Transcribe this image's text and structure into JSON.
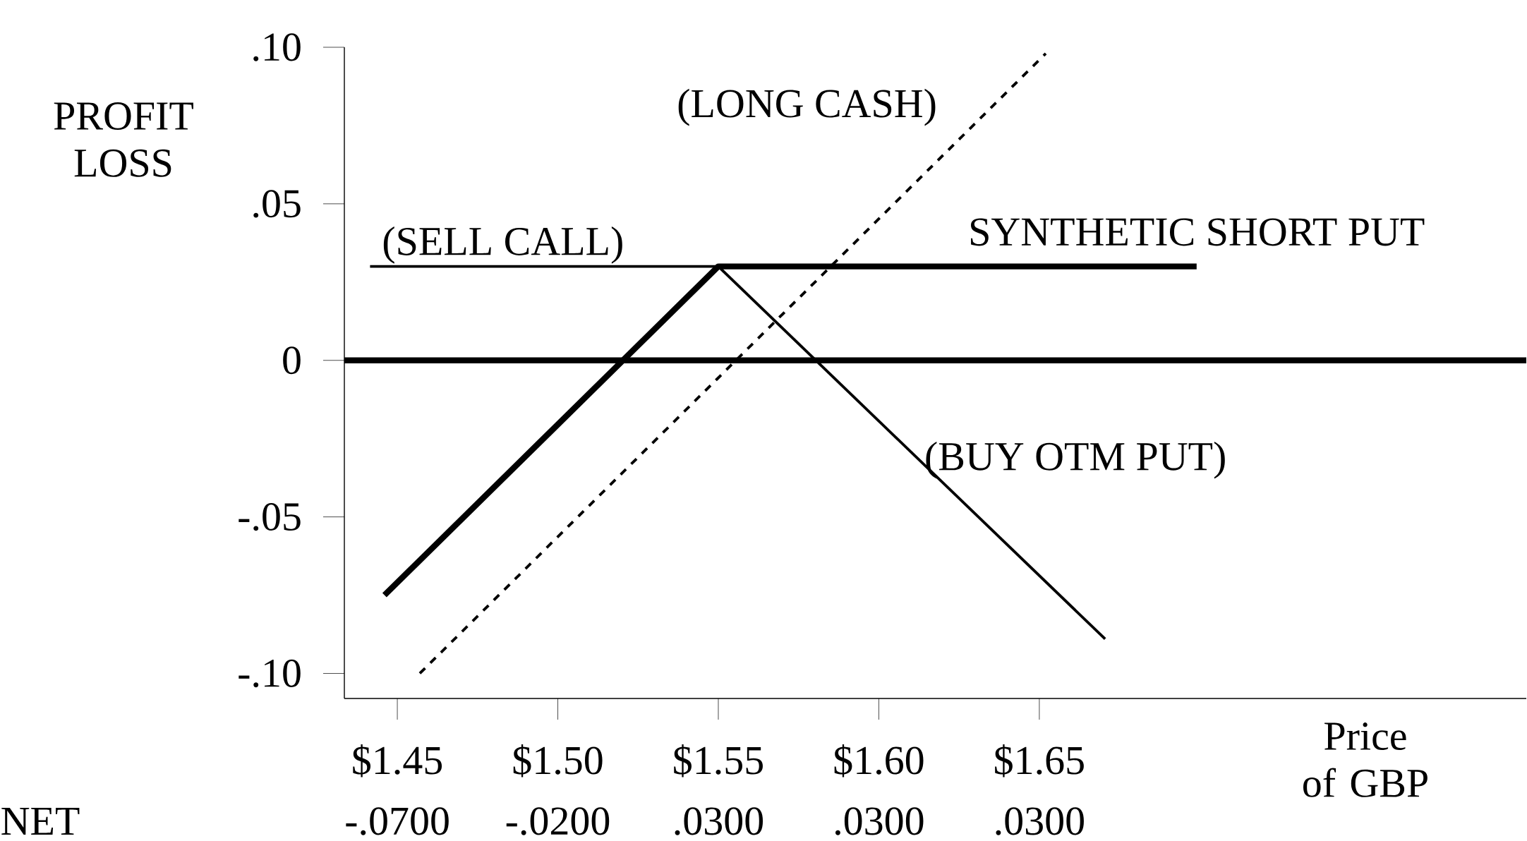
{
  "chart_data": {
    "type": "line",
    "xlabel": "Price of GBP",
    "ylabel": "PROFIT LOSS",
    "annotations": [
      "NET",
      "-.0700",
      "-.0200",
      ".0300",
      ".0300",
      ".0300"
    ],
    "xlim": [
      1.4335,
      1.8017
    ],
    "ylim": [
      -0.108,
      0.1
    ],
    "xticks": [
      {
        "value": 1.45,
        "label": "$1.45"
      },
      {
        "value": 1.5,
        "label": "$1.50"
      },
      {
        "value": 1.55,
        "label": "$1.55"
      },
      {
        "value": 1.6,
        "label": "$1.60"
      },
      {
        "value": 1.65,
        "label": "$1.65"
      }
    ],
    "yticks": [
      {
        "value": 0.1,
        "label": ".10"
      },
      {
        "value": 0.05,
        "label": ".05"
      },
      0,
      {
        "value": -0.05,
        "label": "-.05"
      },
      {
        "value": -0.1,
        "label": "-.10"
      }
    ],
    "ref_lines": [
      {
        "axis": "y",
        "value": 0,
        "color": "#000000"
      }
    ],
    "series": [
      {
        "name": "SYNTHETIC SHORT PUT",
        "color": "#000000",
        "x": [
          1.446,
          1.55,
          1.699
        ],
        "values": [
          -0.075,
          0.03,
          0.03
        ]
      },
      {
        "name": "(SELL CALL)",
        "color": "#000000",
        "x": [
          1.4415,
          1.55
        ],
        "values": [
          0.03,
          0.03
        ]
      },
      {
        "name": "(BUY OTM PUT)",
        "color": "#000000",
        "x": [
          1.55,
          1.6705
        ],
        "values": [
          0.03,
          -0.089
        ]
      },
      {
        "name": "(LONG CASH)",
        "color": "#000000",
        "line_style": "dashed",
        "x": [
          1.457,
          1.652
        ],
        "values": [
          -0.1,
          0.098
        ]
      }
    ]
  }
}
